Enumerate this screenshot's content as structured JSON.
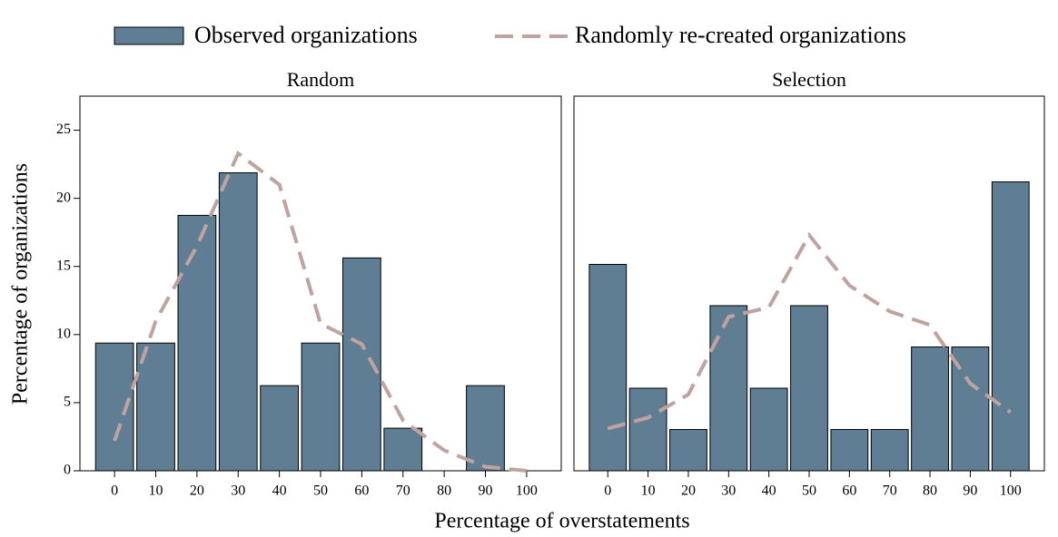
{
  "chart_data": [
    {
      "type": "bar",
      "title": "Random",
      "xlabel": "Percentage of overstatements",
      "ylabel": "Percentage of organizations",
      "x": [
        0,
        10,
        20,
        30,
        40,
        50,
        60,
        70,
        80,
        90,
        100
      ],
      "series": [
        {
          "name": "Observed organizations",
          "type": "bar",
          "color": "#5f7d93",
          "values": [
            9.375,
            9.375,
            18.75,
            21.875,
            6.25,
            9.375,
            15.625,
            3.125,
            0,
            6.25,
            0
          ]
        },
        {
          "name": "Randomly re-created organizations",
          "type": "line",
          "color": "#c0a39f",
          "values": [
            2.2,
            11,
            16.5,
            23.3,
            21,
            10.8,
            9.3,
            3.7,
            1.5,
            0.3,
            0
          ]
        }
      ],
      "xlim": [
        -8.4,
        108.4
      ],
      "ylim": [
        0,
        27.5
      ],
      "xticks": [
        0,
        10,
        20,
        30,
        40,
        50,
        60,
        70,
        80,
        90,
        100
      ],
      "yticks": [
        0,
        5,
        10,
        15,
        20,
        25
      ]
    },
    {
      "type": "bar",
      "title": "Selection",
      "x": [
        0,
        10,
        20,
        30,
        40,
        50,
        60,
        70,
        80,
        90,
        100
      ],
      "series": [
        {
          "name": "Observed organizations",
          "type": "bar",
          "color": "#5f7d93",
          "values": [
            15.15,
            6.06,
            3.03,
            12.12,
            6.06,
            12.12,
            3.03,
            3.03,
            9.09,
            9.09,
            21.21
          ]
        },
        {
          "name": "Randomly re-created organizations",
          "type": "line",
          "color": "#c0a39f",
          "values": [
            3.1,
            3.9,
            5.6,
            11.3,
            12,
            17.3,
            13.6,
            11.7,
            10.7,
            6.4,
            4.3
          ]
        }
      ],
      "xlim": [
        -8.4,
        108.4
      ],
      "ylim": [
        0,
        27.5
      ],
      "xticks": [
        0,
        10,
        20,
        30,
        40,
        50,
        60,
        70,
        80,
        90,
        100
      ]
    }
  ]
}
